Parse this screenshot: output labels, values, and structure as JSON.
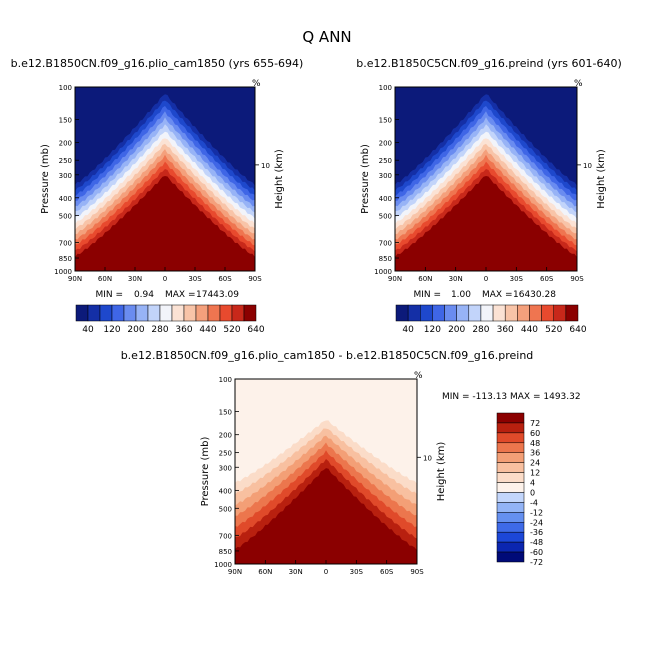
{
  "page_title": "Q ANN",
  "colors": {
    "seq": [
      "#0c1a7a",
      "#142fa6",
      "#1e48cc",
      "#3f66e6",
      "#6a8cf0",
      "#97b3f6",
      "#c2d4fa",
      "#f2f4fa",
      "#fbe2d4",
      "#f8c4a8",
      "#f4a07c",
      "#ef7550",
      "#e84a2e",
      "#c8281a",
      "#8b0000"
    ],
    "diff": [
      "#000a78",
      "#0b26b0",
      "#1c47d8",
      "#3e6ae8",
      "#6590f0",
      "#93b4f6",
      "#c3d6fb",
      "#fdf2ea",
      "#fbdcc8",
      "#f8c0a0",
      "#f39f76",
      "#ec764d",
      "#e04a2a",
      "#b8200f",
      "#8b0000"
    ]
  },
  "chart_data": [
    {
      "type": "contour",
      "title": "b.e12.B1850CN.f09_g16.plio_cam1850 (yrs 655-694)",
      "ylabel": "Pressure (mb)",
      "y2label": "Height (km)",
      "y2_units_symbol": "%",
      "yticks": [
        100,
        150,
        200,
        250,
        300,
        400,
        500,
        700,
        850,
        1000
      ],
      "ytick_labels": [
        "100",
        "150",
        "200",
        "250",
        "300",
        "400",
        "500",
        "700",
        "850",
        "1000"
      ],
      "xticks": [
        90,
        60,
        30,
        0,
        -30,
        -60,
        -90
      ],
      "xtick_labels": [
        "90N",
        "60N",
        "30N",
        "0",
        "30S",
        "60S",
        "90S"
      ],
      "y2tick_labels": [
        "10"
      ],
      "xlim": [
        90,
        -90
      ],
      "ylim": [
        1000,
        100
      ],
      "min_label": "MIN =",
      "min_value": "0.94",
      "max_label": "MAX =",
      "max_value": "17443.09",
      "min": 0.94,
      "max": 17443.09,
      "band_top_mb": 100,
      "band_bottom_mb": 300
    },
    {
      "type": "contour",
      "title": "b.e12.B1850C5CN.f09_g16.preind (yrs 601-640)",
      "ylabel": "Pressure (mb)",
      "y2label": "Height (km)",
      "y2_units_symbol": "%",
      "yticks": [
        100,
        150,
        200,
        250,
        300,
        400,
        500,
        700,
        850,
        1000
      ],
      "ytick_labels": [
        "100",
        "150",
        "200",
        "250",
        "300",
        "400",
        "500",
        "700",
        "850",
        "1000"
      ],
      "xticks": [
        90,
        60,
        30,
        0,
        -30,
        -60,
        -90
      ],
      "xtick_labels": [
        "90N",
        "60N",
        "30N",
        "0",
        "30S",
        "60S",
        "90S"
      ],
      "y2tick_labels": [
        "10"
      ],
      "xlim": [
        90,
        -90
      ],
      "ylim": [
        1000,
        100
      ],
      "min_label": "MIN =",
      "min_value": "1.00",
      "max_label": "MAX =",
      "max_value": "16430.28",
      "min": 1.0,
      "max": 16430.28,
      "band_top_mb": 100,
      "band_bottom_mb": 300
    },
    {
      "type": "contour",
      "title": "b.e12.B1850CN.f09_g16.plio_cam1850 - b.e12.B1850C5CN.f09_g16.preind",
      "ylabel": "Pressure (mb)",
      "y2label": "Height (km)",
      "y2_units_symbol": "%",
      "yticks": [
        100,
        150,
        200,
        250,
        300,
        400,
        500,
        700,
        850,
        1000
      ],
      "ytick_labels": [
        "100",
        "150",
        "200",
        "250",
        "300",
        "400",
        "500",
        "700",
        "850",
        "1000"
      ],
      "xticks": [
        90,
        60,
        30,
        0,
        -30,
        -60,
        -90
      ],
      "xtick_labels": [
        "90N",
        "60N",
        "30N",
        "0",
        "30S",
        "60S",
        "90S"
      ],
      "y2tick_labels": [
        "10"
      ],
      "xlim": [
        90,
        -90
      ],
      "ylim": [
        1000,
        100
      ],
      "minmax_text": "MIN = -113.13   MAX = 1493.32",
      "min": -113.13,
      "max": 1493.32,
      "band_top_mb": 150,
      "band_bottom_mb": 300
    }
  ],
  "colorbar_seq": {
    "labels": [
      "40",
      "120",
      "200",
      "280",
      "360",
      "440",
      "520",
      "640"
    ]
  },
  "colorbar_diff": {
    "labels": [
      "72",
      "60",
      "48",
      "36",
      "24",
      "12",
      "4",
      "0",
      "-4",
      "-12",
      "-24",
      "-36",
      "-48",
      "-60",
      "-72"
    ]
  }
}
